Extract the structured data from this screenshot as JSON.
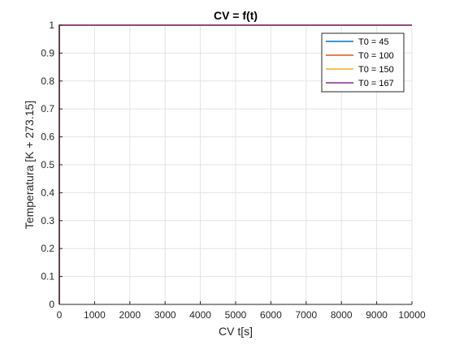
{
  "chart_data": {
    "type": "line",
    "title": "CV = f(t)",
    "xlabel": "CV t[s]",
    "ylabel": "Temperatura [K + 273.15]",
    "xlim": [
      0,
      10000
    ],
    "ylim": [
      0,
      1
    ],
    "xticks": [
      0,
      1000,
      2000,
      3000,
      4000,
      5000,
      6000,
      7000,
      8000,
      9000,
      10000
    ],
    "yticks": [
      0,
      0.1,
      0.2,
      0.3,
      0.4,
      0.5,
      0.6,
      0.7,
      0.8,
      0.9,
      1
    ],
    "xtick_labels": [
      "0",
      "1000",
      "2000",
      "3000",
      "4000",
      "5000",
      "6000",
      "7000",
      "8000",
      "9000",
      "10000"
    ],
    "ytick_labels": [
      "0",
      "0.1",
      "0.2",
      "0.3",
      "0.4",
      "0.5",
      "0.6",
      "0.7",
      "0.8",
      "0.9",
      "1"
    ],
    "grid": true,
    "legend_position": "top-right",
    "series": [
      {
        "name": "T0 = 45",
        "color": "#0072BD",
        "x": [
          0,
          0,
          10000
        ],
        "y": [
          0,
          1,
          1
        ]
      },
      {
        "name": "T0 = 100",
        "color": "#D95319",
        "x": [
          0,
          0,
          10000
        ],
        "y": [
          0,
          1,
          1
        ]
      },
      {
        "name": "T0 = 150",
        "color": "#EDB120",
        "x": [
          0,
          0,
          10000
        ],
        "y": [
          0,
          1,
          1
        ]
      },
      {
        "name": "T0 = 167",
        "color": "#7E2F8E",
        "x": [
          0,
          0,
          10000
        ],
        "y": [
          0,
          1,
          1
        ]
      }
    ]
  }
}
